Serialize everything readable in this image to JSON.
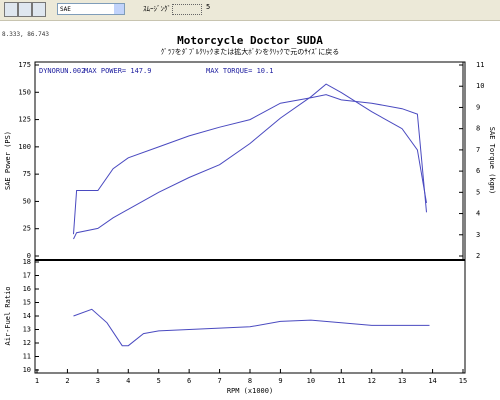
{
  "toolbar": {
    "dropdown": "SAE",
    "smoothing_label": "ｽﾑｰｼﾞﾝｸﾞ",
    "smoothing_value": "5"
  },
  "cursor_readout": "8.333, 86.743",
  "chart_data": [
    {
      "type": "line",
      "title": "Motorcycle Doctor SUDA",
      "subtitle": "ｸﾞﾗﾌをﾀﾞﾌﾞﾙｸﾘｯｸまたは拡大ﾎﾞﾀﾝをｸﾘｯｸで元のｻｲｽﾞに戻る",
      "annotations": [
        "DYNORUN.002",
        "MAX POWER= 147.9",
        "MAX TORQUE= 10.1"
      ],
      "ylabel": "SAE Power (PS)",
      "y2label": "SAE Torque (kgm)",
      "x": [
        2.2,
        2.3,
        3,
        3.5,
        4,
        5,
        6,
        7,
        8,
        9,
        10,
        10.5,
        11,
        12,
        13,
        13.5,
        13.8
      ],
      "series": [
        {
          "color": "#4a4ac0",
          "axis": "y",
          "values": [
            20,
            60,
            60,
            80,
            90,
            100,
            110,
            118,
            125,
            140,
            145,
            147.9,
            143,
            140,
            135,
            130,
            40
          ]
        },
        {
          "color": "#4a4ac0",
          "axis": "y2",
          "values": [
            2.8,
            3.1,
            3.3,
            3.8,
            4.2,
            5,
            5.7,
            6.3,
            7.3,
            8.5,
            9.5,
            10.1,
            9.7,
            8.8,
            8,
            7,
            4.5
          ]
        }
      ],
      "xlim": [
        1,
        15
      ],
      "ylim": [
        0,
        175
      ],
      "yticks": [
        0,
        25,
        50,
        75,
        100,
        125,
        150,
        175
      ],
      "y2lim": [
        2,
        11
      ],
      "y2ticks": [
        2,
        3,
        4,
        5,
        6,
        7,
        8,
        9,
        10,
        11
      ]
    },
    {
      "type": "line",
      "ylabel": "Air-Fuel Ratio",
      "xlabel": "RPM (x1000)",
      "x": [
        2.2,
        2.8,
        3.3,
        3.8,
        4,
        4.5,
        5,
        6,
        8,
        9,
        10,
        11,
        12,
        13,
        13.9
      ],
      "series": [
        {
          "color": "#4a4ac0",
          "axis": "y",
          "values": [
            14,
            14.5,
            13.5,
            11.8,
            11.8,
            12.7,
            12.9,
            13,
            13.2,
            13.6,
            13.7,
            13.5,
            13.3,
            13.3,
            13.3
          ]
        }
      ],
      "xlim": [
        1,
        15
      ],
      "xticks": [
        1,
        2,
        3,
        4,
        5,
        6,
        7,
        8,
        9,
        10,
        11,
        12,
        13,
        14,
        15
      ],
      "ylim": [
        10,
        18
      ],
      "yticks": [
        10,
        11,
        12,
        13,
        14,
        15,
        16,
        17,
        18
      ]
    }
  ]
}
